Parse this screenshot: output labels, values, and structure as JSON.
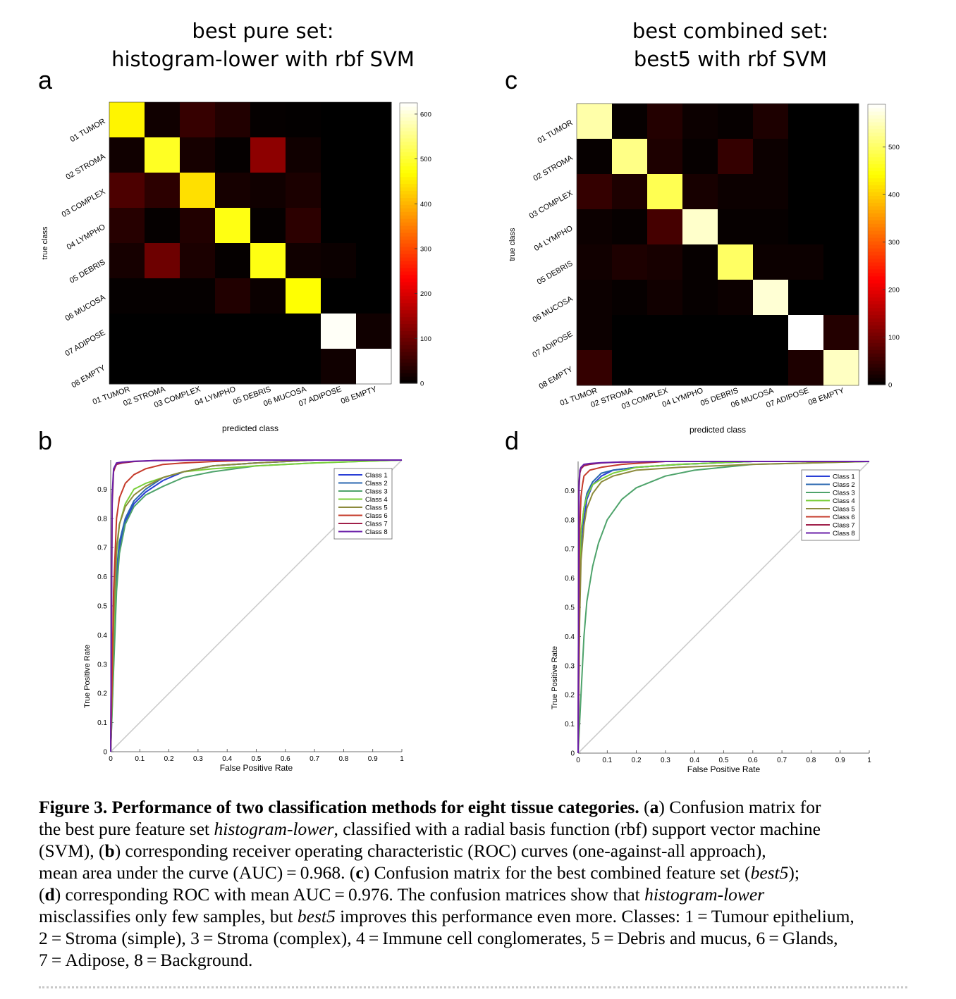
{
  "colors": {
    "hot_scale": [
      "#000000",
      "#990000",
      "#ff0000",
      "#ff8800",
      "#ffff00",
      "#ffffff"
    ],
    "diagonal": "#cccccc",
    "series": [
      "#2a3fd6",
      "#2a67b0",
      "#4ea36b",
      "#7acf3a",
      "#8c8a3c",
      "#c53a2a",
      "#a0204a",
      "#6a1fa8"
    ]
  },
  "captions": {
    "lines": [
      {
        "parts": [
          {
            "t": "Figure 3.  Performance of two classification methods for eight tissue categories.",
            "s": "b"
          },
          {
            "t": " ("
          },
          {
            "t": "a",
            "s": "b"
          },
          {
            "t": ") Confusion matrix for"
          }
        ]
      },
      {
        "parts": [
          {
            "t": "the best pure feature set "
          },
          {
            "t": "histogram-lower",
            "s": "i"
          },
          {
            "t": ", classified with a radial basis function (rbf) support vector machine"
          }
        ]
      },
      {
        "parts": [
          {
            "t": "(SVM), ("
          },
          {
            "t": "b",
            "s": "b"
          },
          {
            "t": ") corresponding receiver operating characteristic (ROC) curves (one-against-all approach),"
          }
        ]
      },
      {
        "parts": [
          {
            "t": "mean area under the curve (AUC) = 0.968. ("
          },
          {
            "t": "c",
            "s": "b"
          },
          {
            "t": ") Confusion matrix for the best combined feature set ("
          },
          {
            "t": "best5",
            "s": "i"
          },
          {
            "t": ");"
          }
        ]
      },
      {
        "parts": [
          {
            "t": "("
          },
          {
            "t": "d",
            "s": "b"
          },
          {
            "t": ") corresponding ROC with mean AUC = 0.976. The confusion matrices show that "
          },
          {
            "t": "histogram-lower",
            "s": "i"
          }
        ]
      },
      {
        "parts": [
          {
            "t": "misclassifies only few samples, but "
          },
          {
            "t": "best5",
            "s": "i"
          },
          {
            "t": " improves this performance even more. Classes: 1 = Tumour epithelium,"
          }
        ]
      },
      {
        "parts": [
          {
            "t": "2 = Stroma (simple), 3 = Stroma (complex), 4 = Immune cell conglomerates, 5 = Debris and mucus, 6 = Glands,"
          }
        ]
      },
      {
        "parts": [
          {
            "t": "7 = Adipose, 8 = Background."
          }
        ]
      }
    ]
  },
  "chart_data": [
    {
      "type": "heatmap",
      "panel": "a",
      "title": [
        "best pure set:",
        "histogram-lower with rbf SVM"
      ],
      "xlabel": "predicted class",
      "ylabel": "true class",
      "categories": [
        "01 TUMOR",
        "02 STROMA",
        "03 COMPLEX",
        "04 LYMPHO",
        "05 DEBRIS",
        "06 MUCOSA",
        "07 ADIPOSE",
        "08 EMPTY"
      ],
      "matrix": [
        [
          460,
          15,
          50,
          30,
          5,
          3,
          0,
          0
        ],
        [
          15,
          490,
          20,
          5,
          130,
          15,
          0,
          0
        ],
        [
          70,
          40,
          440,
          20,
          15,
          25,
          0,
          0
        ],
        [
          35,
          5,
          30,
          480,
          5,
          40,
          0,
          0
        ],
        [
          20,
          100,
          25,
          5,
          480,
          15,
          10,
          0
        ],
        [
          5,
          5,
          5,
          30,
          10,
          470,
          0,
          0
        ],
        [
          0,
          0,
          0,
          0,
          0,
          0,
          620,
          15
        ],
        [
          0,
          0,
          0,
          0,
          0,
          0,
          15,
          625
        ]
      ],
      "colorbar": {
        "min": 0,
        "max": 625,
        "ticks": [
          0,
          100,
          200,
          300,
          400,
          500,
          600
        ]
      }
    },
    {
      "type": "line",
      "panel": "b",
      "xlabel": "False Positive Rate",
      "ylabel": "True Positive Rate",
      "xlim": [
        0,
        1
      ],
      "ylim": [
        0,
        1
      ],
      "xticks": [
        0,
        0.1,
        0.2,
        0.3,
        0.4,
        0.5,
        0.6,
        0.7,
        0.8,
        0.9,
        1
      ],
      "yticks": [
        0,
        0.1,
        0.2,
        0.3,
        0.4,
        0.5,
        0.6,
        0.7,
        0.8,
        0.9
      ],
      "legend_position": "top-right",
      "series": [
        {
          "name": "Class 1",
          "x": [
            0,
            0.01,
            0.02,
            0.03,
            0.05,
            0.08,
            0.12,
            0.18,
            0.25,
            0.35,
            0.5,
            0.7,
            1
          ],
          "y": [
            0,
            0.3,
            0.6,
            0.7,
            0.79,
            0.85,
            0.89,
            0.93,
            0.96,
            0.98,
            0.99,
            1,
            1
          ]
        },
        {
          "name": "Class 2",
          "x": [
            0,
            0.01,
            0.02,
            0.03,
            0.05,
            0.08,
            0.12,
            0.18,
            0.25,
            0.35,
            0.5,
            0.7,
            1
          ],
          "y": [
            0,
            0.35,
            0.62,
            0.72,
            0.8,
            0.86,
            0.9,
            0.94,
            0.96,
            0.98,
            0.99,
            1,
            1
          ]
        },
        {
          "name": "Class 3",
          "x": [
            0,
            0.01,
            0.02,
            0.03,
            0.05,
            0.08,
            0.12,
            0.18,
            0.25,
            0.35,
            0.5,
            0.7,
            1
          ],
          "y": [
            0,
            0.28,
            0.55,
            0.68,
            0.78,
            0.84,
            0.88,
            0.91,
            0.94,
            0.96,
            0.98,
            0.99,
            1
          ]
        },
        {
          "name": "Class 4",
          "x": [
            0,
            0.01,
            0.02,
            0.03,
            0.05,
            0.08,
            0.12,
            0.18,
            0.25,
            0.35,
            0.5,
            0.7,
            1
          ],
          "y": [
            0,
            0.4,
            0.68,
            0.78,
            0.85,
            0.9,
            0.92,
            0.94,
            0.96,
            0.97,
            0.98,
            0.99,
            1
          ]
        },
        {
          "name": "Class 5",
          "x": [
            0,
            0.01,
            0.02,
            0.03,
            0.05,
            0.08,
            0.12,
            0.18,
            0.25,
            0.35,
            0.5,
            0.7,
            1
          ],
          "y": [
            0,
            0.45,
            0.7,
            0.78,
            0.84,
            0.88,
            0.91,
            0.94,
            0.96,
            0.98,
            0.99,
            1,
            1
          ]
        },
        {
          "name": "Class 6",
          "x": [
            0,
            0.01,
            0.02,
            0.03,
            0.05,
            0.08,
            0.12,
            0.18,
            0.25,
            0.35,
            0.5,
            0.7,
            1
          ],
          "y": [
            0,
            0.55,
            0.8,
            0.87,
            0.92,
            0.95,
            0.97,
            0.985,
            0.99,
            0.995,
            1,
            1,
            1
          ]
        },
        {
          "name": "Class 7",
          "x": [
            0,
            0.005,
            0.01,
            0.015,
            0.02,
            0.04,
            0.08,
            0.15,
            0.3,
            0.6,
            1
          ],
          "y": [
            0,
            0.85,
            0.96,
            0.975,
            0.985,
            0.99,
            0.995,
            0.998,
            1,
            1,
            1
          ]
        },
        {
          "name": "Class 8",
          "x": [
            0,
            0.005,
            0.01,
            0.015,
            0.02,
            0.04,
            0.08,
            0.15,
            0.3,
            0.6,
            1
          ],
          "y": [
            0,
            0.88,
            0.97,
            0.98,
            0.99,
            0.993,
            0.996,
            0.998,
            1,
            1,
            1
          ]
        }
      ]
    },
    {
      "type": "heatmap",
      "panel": "c",
      "title": [
        "best combined set:",
        "best5 with rbf SVM"
      ],
      "xlabel": "predicted class",
      "ylabel": "true class",
      "categories": [
        "01 TUMOR",
        "02 STROMA",
        "03 COMPLEX",
        "04 LYMPHO",
        "05 DEBRIS",
        "06 MUCOSA",
        "07 ADIPOSE",
        "08 EMPTY"
      ],
      "matrix": [
        [
          540,
          5,
          30,
          10,
          5,
          25,
          0,
          0
        ],
        [
          5,
          520,
          25,
          5,
          45,
          10,
          0,
          0
        ],
        [
          45,
          25,
          490,
          20,
          10,
          10,
          0,
          0
        ],
        [
          10,
          5,
          60,
          560,
          5,
          5,
          0,
          0
        ],
        [
          15,
          25,
          20,
          5,
          500,
          10,
          10,
          0
        ],
        [
          10,
          5,
          15,
          5,
          10,
          565,
          0,
          0
        ],
        [
          10,
          0,
          0,
          0,
          0,
          0,
          590,
          30
        ],
        [
          45,
          0,
          0,
          0,
          0,
          0,
          25,
          555
        ]
      ],
      "colorbar": {
        "min": 0,
        "max": 590,
        "ticks": [
          0,
          100,
          200,
          300,
          400,
          500
        ]
      }
    },
    {
      "type": "line",
      "panel": "d",
      "xlabel": "False Positive Rate",
      "ylabel": "True Positive Rate",
      "xlim": [
        0,
        1
      ],
      "ylim": [
        0,
        1
      ],
      "xticks": [
        0,
        0.1,
        0.2,
        0.3,
        0.4,
        0.5,
        0.6,
        0.7,
        0.8,
        0.9,
        1
      ],
      "yticks": [
        0,
        0.1,
        0.2,
        0.3,
        0.4,
        0.5,
        0.6,
        0.7,
        0.8,
        0.9
      ],
      "legend_position": "top-right",
      "series": [
        {
          "name": "Class 1",
          "x": [
            0,
            0.005,
            0.01,
            0.02,
            0.03,
            0.05,
            0.08,
            0.12,
            0.2,
            0.35,
            0.6,
            1
          ],
          "y": [
            0,
            0.5,
            0.7,
            0.8,
            0.87,
            0.92,
            0.95,
            0.97,
            0.98,
            0.99,
            1,
            1
          ]
        },
        {
          "name": "Class 2",
          "x": [
            0,
            0.005,
            0.01,
            0.02,
            0.03,
            0.05,
            0.08,
            0.12,
            0.2,
            0.35,
            0.6,
            1
          ],
          "y": [
            0,
            0.55,
            0.75,
            0.84,
            0.89,
            0.93,
            0.96,
            0.97,
            0.98,
            0.99,
            1,
            1
          ]
        },
        {
          "name": "Class 3",
          "x": [
            0,
            0.01,
            0.02,
            0.03,
            0.05,
            0.07,
            0.1,
            0.15,
            0.2,
            0.3,
            0.4,
            0.6,
            1
          ],
          "y": [
            0,
            0.2,
            0.4,
            0.52,
            0.64,
            0.72,
            0.8,
            0.87,
            0.91,
            0.95,
            0.97,
            0.99,
            1
          ]
        },
        {
          "name": "Class 4",
          "x": [
            0,
            0.005,
            0.01,
            0.02,
            0.03,
            0.05,
            0.08,
            0.12,
            0.2,
            0.35,
            0.6,
            1
          ],
          "y": [
            0,
            0.6,
            0.76,
            0.84,
            0.88,
            0.92,
            0.94,
            0.96,
            0.98,
            0.99,
            1,
            1
          ]
        },
        {
          "name": "Class 5",
          "x": [
            0,
            0.005,
            0.01,
            0.02,
            0.03,
            0.05,
            0.08,
            0.12,
            0.2,
            0.35,
            0.6,
            1
          ],
          "y": [
            0,
            0.45,
            0.66,
            0.78,
            0.84,
            0.89,
            0.93,
            0.95,
            0.97,
            0.98,
            0.99,
            1
          ]
        },
        {
          "name": "Class 6",
          "x": [
            0,
            0.005,
            0.01,
            0.015,
            0.02,
            0.04,
            0.08,
            0.15,
            0.3,
            0.6,
            1
          ],
          "y": [
            0,
            0.75,
            0.88,
            0.92,
            0.95,
            0.97,
            0.98,
            0.99,
            1,
            1,
            1
          ]
        },
        {
          "name": "Class 7",
          "x": [
            0,
            0.003,
            0.006,
            0.01,
            0.02,
            0.04,
            0.08,
            0.15,
            0.3,
            0.6,
            1
          ],
          "y": [
            0,
            0.9,
            0.96,
            0.975,
            0.985,
            0.99,
            0.995,
            0.998,
            1,
            1,
            1
          ]
        },
        {
          "name": "Class 8",
          "x": [
            0,
            0.003,
            0.006,
            0.01,
            0.02,
            0.04,
            0.08,
            0.15,
            0.3,
            0.6,
            1
          ],
          "y": [
            0,
            0.92,
            0.97,
            0.98,
            0.99,
            0.993,
            0.996,
            0.998,
            1,
            1,
            1
          ]
        }
      ]
    }
  ]
}
